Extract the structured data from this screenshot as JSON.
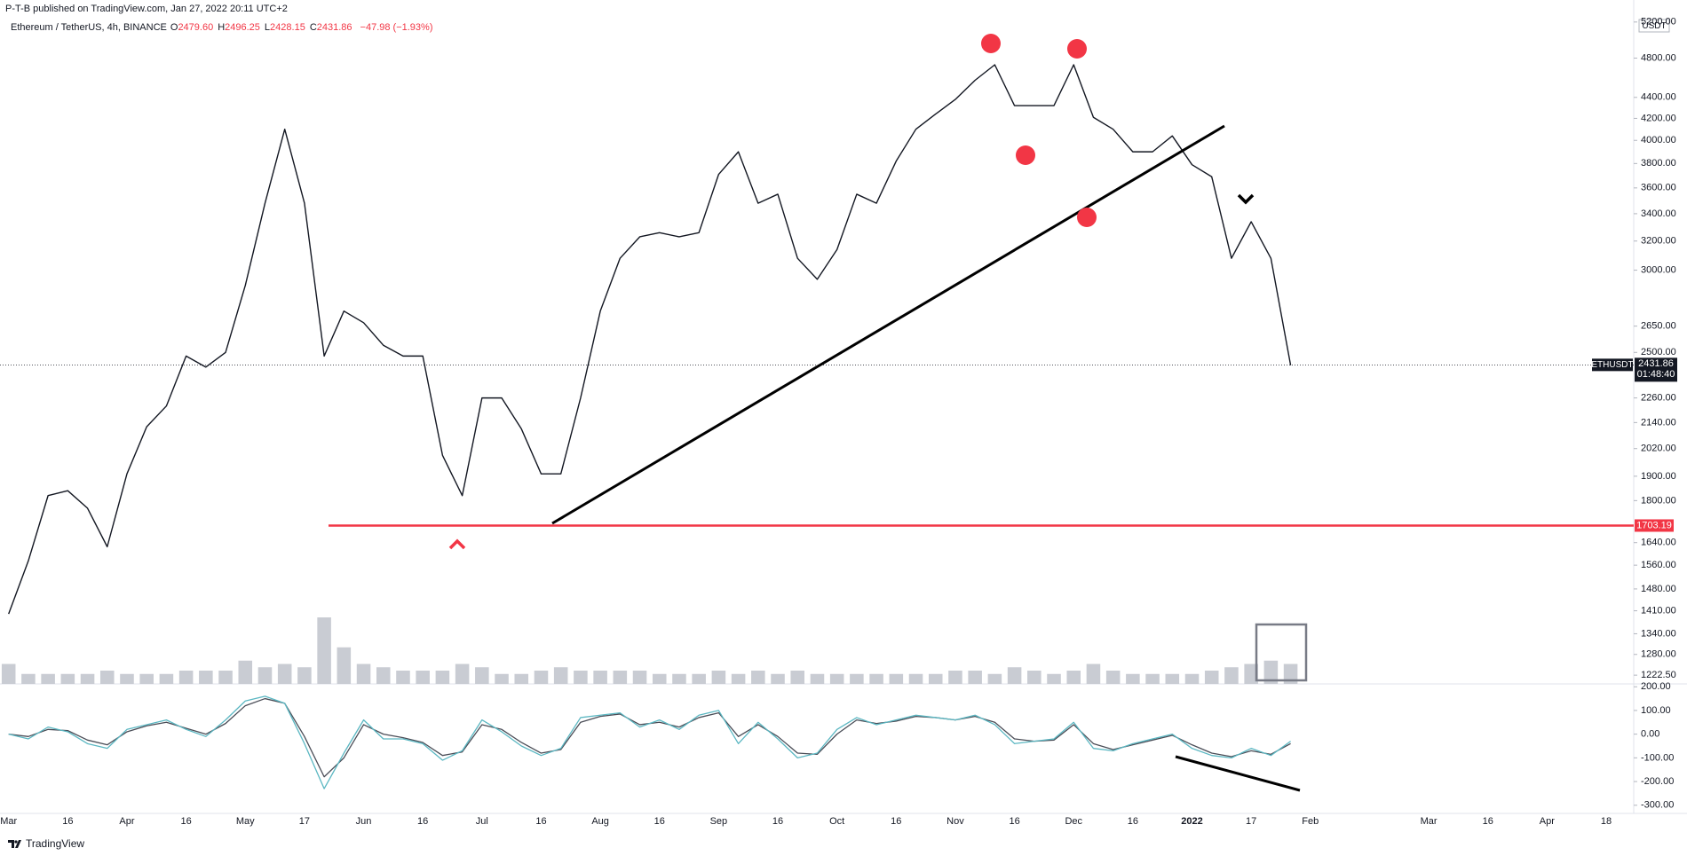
{
  "publisher": "P-T-B published on TradingView.com, Jan 27, 2022 20:11 UTC+2",
  "brand": "TradingView",
  "chart_data": {
    "type": "line",
    "subtitle": "Ethereum / TetherUS, 4h, BINANCE",
    "ohlc": [
      {
        "key": "O",
        "value": "2479.60"
      },
      {
        "key": "H",
        "value": "2496.25"
      },
      {
        "key": "L",
        "value": "2428.15"
      },
      {
        "key": "C",
        "value": "2431.86"
      }
    ],
    "change": "−47.98 (−1.93%)",
    "currency": "USDT",
    "log_scale": true,
    "grid": false,
    "categories": [
      "Mar",
      null,
      null,
      "16",
      null,
      null,
      "Apr",
      null,
      null,
      "16",
      null,
      null,
      "May",
      null,
      null,
      "17",
      null,
      null,
      "Jun",
      null,
      null,
      "16",
      null,
      null,
      "Jul",
      null,
      null,
      "16",
      null,
      null,
      "Aug",
      null,
      null,
      "16",
      null,
      null,
      "Sep",
      null,
      null,
      "16",
      null,
      null,
      "Oct",
      null,
      null,
      "16",
      null,
      null,
      "Nov",
      null,
      null,
      "16",
      null,
      null,
      "Dec",
      null,
      null,
      "16",
      null,
      null,
      "2022",
      null,
      null,
      "17",
      null,
      null,
      "Feb",
      null,
      null,
      null,
      null,
      null,
      "Mar",
      null,
      null,
      "16",
      null,
      null,
      "Apr",
      null,
      null,
      "18"
    ],
    "ylim": [
      1199,
      5460
    ],
    "yticks": [
      {
        "value": 5200,
        "label": "5200.00"
      },
      {
        "value": 4800,
        "label": "4800.00"
      },
      {
        "value": 4400,
        "label": "4400.00"
      },
      {
        "value": 4200,
        "label": "4200.00"
      },
      {
        "value": 4000,
        "label": "4000.00"
      },
      {
        "value": 3800,
        "label": "3800.00"
      },
      {
        "value": 3600,
        "label": "3600.00"
      },
      {
        "value": 3400,
        "label": "3400.00"
      },
      {
        "value": 3200,
        "label": "3200.00"
      },
      {
        "value": 3000,
        "label": "3000.00"
      },
      {
        "value": 2650,
        "label": "2650.00"
      },
      {
        "value": 2500,
        "label": "2500.00"
      },
      {
        "value": 2260,
        "label": "2260.00"
      },
      {
        "value": 2140,
        "label": "2140.00"
      },
      {
        "value": 2020,
        "label": "2020.00"
      },
      {
        "value": 1900,
        "label": "1900.00"
      },
      {
        "value": 1800,
        "label": "1800.00"
      },
      {
        "value": 1640,
        "label": "1640.00"
      },
      {
        "value": 1560,
        "label": "1560.00"
      },
      {
        "value": 1480,
        "label": "1480.00"
      },
      {
        "value": 1410,
        "label": "1410.00"
      },
      {
        "value": 1340,
        "label": "1340.00"
      },
      {
        "value": 1280,
        "label": "1280.00"
      },
      {
        "value": 1222.5,
        "label": "1222.50"
      }
    ],
    "series": [
      {
        "name": "ETHUSDT",
        "color": "#131722",
        "values": [
          1400,
          1575,
          1820,
          1840,
          1770,
          1625,
          1910,
          2120,
          2220,
          2480,
          2420,
          2500,
          2900,
          3480,
          4100,
          3480,
          2480,
          2740,
          2670,
          2540,
          2480,
          2480,
          1990,
          1820,
          2260,
          2260,
          2110,
          1910,
          1910,
          2260,
          2740,
          3080,
          3230,
          3260,
          3230,
          3260,
          3710,
          3900,
          3480,
          3550,
          3080,
          2940,
          3140,
          3550,
          3480,
          3820,
          4100,
          4240,
          4380,
          4570,
          4730,
          4320,
          4320,
          4320,
          4730,
          4210,
          4100,
          3900,
          3900,
          4040,
          3790,
          3690,
          3080,
          3340,
          3080,
          2430,
          null,
          null,
          null,
          null,
          null,
          null,
          null,
          null,
          null,
          null,
          null,
          null,
          null,
          null,
          null,
          null
        ]
      }
    ],
    "last_price": 2431.86,
    "countdown": "01:48:40",
    "support": {
      "value": 1703.19,
      "color": "#f23645"
    },
    "volume": {
      "color": "#c9ccd3",
      "values": [
        30,
        15,
        15,
        15,
        15,
        20,
        15,
        15,
        15,
        20,
        20,
        20,
        35,
        25,
        30,
        25,
        100,
        55,
        30,
        25,
        20,
        20,
        20,
        30,
        25,
        15,
        15,
        20,
        25,
        20,
        20,
        20,
        20,
        15,
        15,
        15,
        20,
        15,
        20,
        15,
        20,
        15,
        15,
        15,
        15,
        15,
        15,
        15,
        20,
        20,
        15,
        25,
        20,
        15,
        20,
        30,
        20,
        15,
        15,
        15,
        15,
        20,
        25,
        30,
        35,
        30,
        null,
        null,
        null,
        null,
        null,
        null,
        null,
        null,
        null,
        null,
        null,
        null,
        null,
        null,
        null,
        null
      ]
    },
    "oscillator": {
      "ylim": [
        -327,
        212
      ],
      "yticks": [
        {
          "value": 200,
          "label": "200.00"
        },
        {
          "value": 100,
          "label": "100.00"
        },
        {
          "value": 0,
          "label": "0.00"
        },
        {
          "value": -100,
          "label": "-100.00"
        },
        {
          "value": -200,
          "label": "-200.00"
        },
        {
          "value": -300,
          "label": "-300.00"
        }
      ],
      "series": [
        {
          "color": "#4a4d57",
          "values": [
            0,
            -10,
            20,
            15,
            -25,
            -45,
            10,
            35,
            50,
            25,
            0,
            45,
            120,
            150,
            130,
            -10,
            -180,
            -100,
            40,
            0,
            -15,
            -35,
            -90,
            -75,
            40,
            20,
            -35,
            -80,
            -65,
            50,
            75,
            85,
            40,
            50,
            30,
            70,
            90,
            -10,
            40,
            -10,
            -80,
            -85,
            0,
            60,
            45,
            55,
            75,
            70,
            60,
            75,
            50,
            -20,
            -30,
            -25,
            40,
            -40,
            -65,
            -45,
            -25,
            -5,
            -45,
            -80,
            -95,
            -70,
            -85,
            -40,
            null,
            null,
            null,
            null,
            null,
            null,
            null,
            null,
            null,
            null,
            null,
            null,
            null,
            null,
            null,
            null
          ]
        },
        {
          "color": "#5bb7c2",
          "values": [
            0,
            -20,
            30,
            10,
            -40,
            -60,
            20,
            40,
            60,
            20,
            -10,
            60,
            140,
            160,
            130,
            -40,
            -230,
            -80,
            60,
            -20,
            -20,
            -40,
            -110,
            -70,
            60,
            10,
            -50,
            -90,
            -60,
            70,
            80,
            90,
            30,
            60,
            20,
            80,
            100,
            -40,
            50,
            -20,
            -100,
            -80,
            20,
            70,
            40,
            60,
            80,
            70,
            60,
            80,
            40,
            -40,
            -30,
            -20,
            50,
            -60,
            -70,
            -40,
            -20,
            0,
            -60,
            -90,
            -100,
            -60,
            -90,
            -30,
            null,
            null,
            null,
            null,
            null,
            null,
            null,
            null,
            null,
            null,
            null,
            null,
            null,
            null,
            null,
            null
          ]
        }
      ]
    }
  }
}
